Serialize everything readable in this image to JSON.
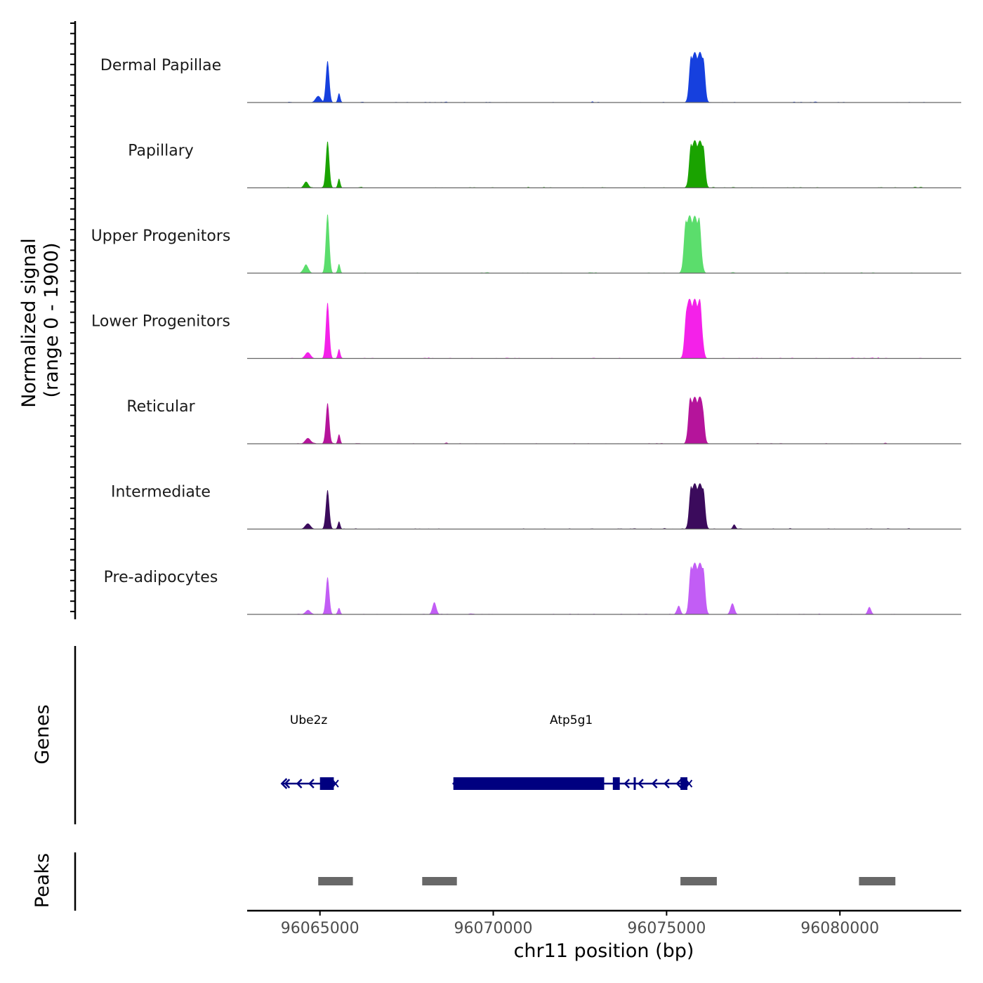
{
  "chart_data": {
    "type": "area",
    "chromosome": "chr11",
    "xlim": [
      96062900,
      96083500
    ],
    "xlabel": "chr11 position (bp)",
    "x_ticks": [
      96065000,
      96070000,
      96075000,
      96080000
    ],
    "x_tick_labels": [
      "96065000",
      "96070000",
      "96075000",
      "96080000"
    ],
    "ylabel_line1": "Normalized signal",
    "ylabel_line2": "(range 0 - 1900)",
    "ylim": [
      0,
      1900
    ],
    "tracks": [
      {
        "name": "Dermal Papillae",
        "color": "#1640DE",
        "peaks": [
          {
            "pos": 96064950,
            "width": 110,
            "height": 210
          },
          {
            "pos": 96065220,
            "width": 70,
            "height": 1340
          },
          {
            "pos": 96065550,
            "width": 50,
            "height": 300
          },
          {
            "pos": 96075880,
            "width": 220,
            "height": 1600
          }
        ]
      },
      {
        "name": "Papillary",
        "color": "#1AA300",
        "peaks": [
          {
            "pos": 96064600,
            "width": 90,
            "height": 200
          },
          {
            "pos": 96065220,
            "width": 70,
            "height": 1500
          },
          {
            "pos": 96065550,
            "width": 50,
            "height": 300
          },
          {
            "pos": 96075880,
            "width": 220,
            "height": 1510
          }
        ]
      },
      {
        "name": "Upper Progenitors",
        "color": "#5BDD6C",
        "peaks": [
          {
            "pos": 96064600,
            "width": 100,
            "height": 250
          },
          {
            "pos": 96065220,
            "width": 70,
            "height": 1900
          },
          {
            "pos": 96065550,
            "width": 50,
            "height": 300
          },
          {
            "pos": 96075750,
            "width": 240,
            "height": 1830
          }
        ]
      },
      {
        "name": "Lower Progenitors",
        "color": "#F421E9",
        "peaks": [
          {
            "pos": 96064650,
            "width": 110,
            "height": 200
          },
          {
            "pos": 96065220,
            "width": 70,
            "height": 1800
          },
          {
            "pos": 96065550,
            "width": 50,
            "height": 300
          },
          {
            "pos": 96075780,
            "width": 240,
            "height": 1900
          }
        ]
      },
      {
        "name": "Reticular",
        "color": "#B5149B",
        "peaks": [
          {
            "pos": 96064650,
            "width": 110,
            "height": 180
          },
          {
            "pos": 96065220,
            "width": 70,
            "height": 1310
          },
          {
            "pos": 96065550,
            "width": 50,
            "height": 300
          },
          {
            "pos": 96075850,
            "width": 220,
            "height": 1500
          }
        ]
      },
      {
        "name": "Intermediate",
        "color": "#3B0B5C",
        "peaks": [
          {
            "pos": 96064650,
            "width": 110,
            "height": 180
          },
          {
            "pos": 96065220,
            "width": 70,
            "height": 1260
          },
          {
            "pos": 96065550,
            "width": 50,
            "height": 250
          },
          {
            "pos": 96075880,
            "width": 220,
            "height": 1460
          },
          {
            "pos": 96076950,
            "width": 60,
            "height": 150
          }
        ]
      },
      {
        "name": "Pre-adipocytes",
        "color": "#C25DF5",
        "peaks": [
          {
            "pos": 96064650,
            "width": 110,
            "height": 120
          },
          {
            "pos": 96065220,
            "width": 70,
            "height": 1200
          },
          {
            "pos": 96065550,
            "width": 50,
            "height": 200
          },
          {
            "pos": 96068300,
            "width": 80,
            "height": 390
          },
          {
            "pos": 96075350,
            "width": 70,
            "height": 280
          },
          {
            "pos": 96075880,
            "width": 220,
            "height": 1650
          },
          {
            "pos": 96076900,
            "width": 80,
            "height": 350
          },
          {
            "pos": 96080850,
            "width": 70,
            "height": 240
          }
        ]
      }
    ],
    "genes_label": "Genes",
    "genes": [
      {
        "name": "Ube2z",
        "color": "#000080",
        "start": 96063900,
        "end": 96065450,
        "arrows": [
          96064000,
          96064350,
          96064700
        ],
        "exons": [
          [
            96065000,
            96065400
          ]
        ]
      },
      {
        "name": "Atp5g1",
        "color": "#000080",
        "start": 96068850,
        "end": 96075650,
        "arrows": [
          96073800,
          96074200,
          96074600,
          96074950,
          96075300
        ],
        "exons": [
          [
            96068850,
            96073200
          ],
          [
            96073450,
            96073650
          ],
          [
            96074050,
            96074100
          ],
          [
            96075400,
            96075600
          ]
        ]
      }
    ],
    "peaks_label": "Peaks",
    "peak_regions": [
      [
        96064950,
        96065950
      ],
      [
        96067950,
        96068950
      ],
      [
        96075400,
        96076450
      ],
      [
        96080550,
        96081600
      ]
    ],
    "peak_color": "#686868"
  }
}
